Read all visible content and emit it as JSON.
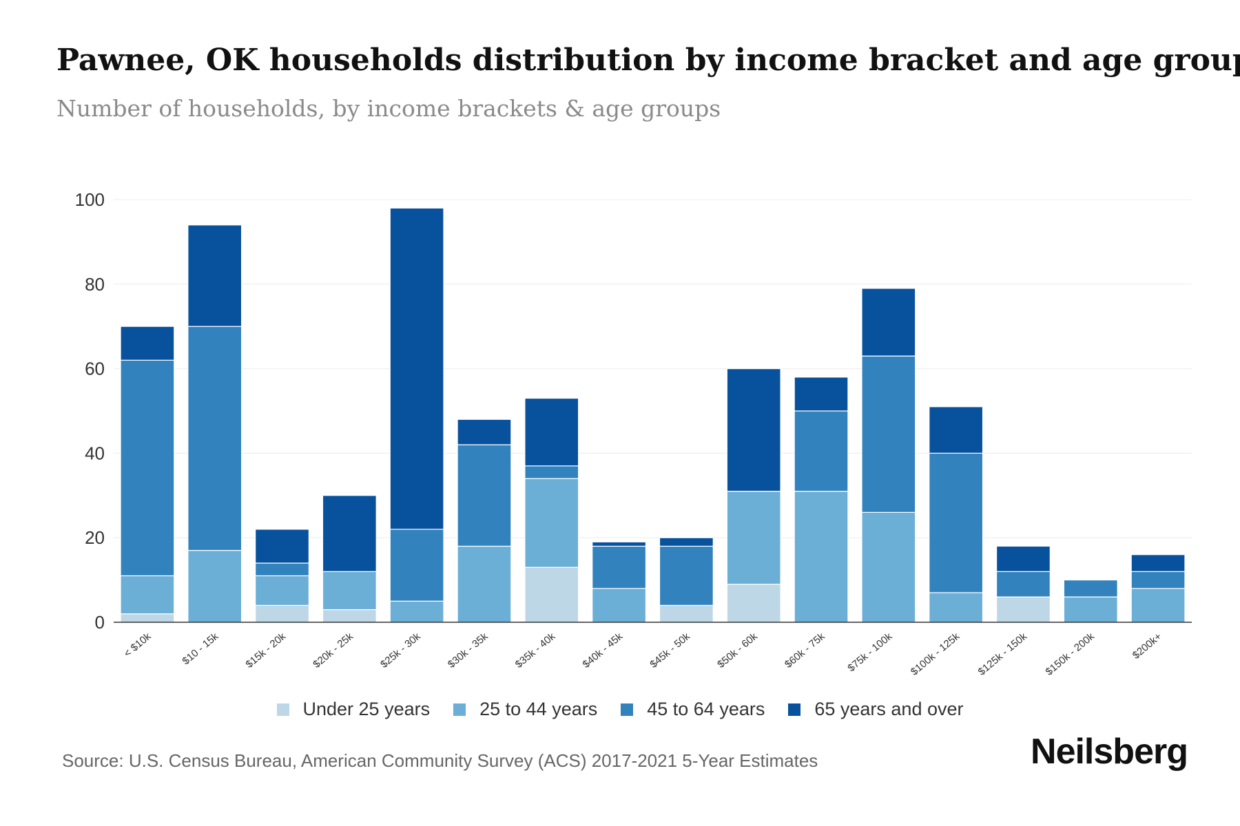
{
  "header": {
    "title": "Pawnee, OK households distribution by income bracket and age group",
    "subtitle": "Number of households, by income brackets & age groups"
  },
  "footer": {
    "source": "Source: U.S. Census Bureau, American Community Survey (ACS) 2017-2021 5-Year Estimates",
    "brand": "Neilsberg"
  },
  "chart_data": {
    "type": "bar",
    "stacked": true,
    "title": "Pawnee, OK households distribution by income bracket and age group",
    "subtitle": "Number of households, by income brackets & age groups",
    "xlabel": "",
    "ylabel": "",
    "ylim": [
      0,
      100
    ],
    "yticks": [
      0,
      20,
      40,
      60,
      80,
      100
    ],
    "grid": true,
    "legend_position": "bottom-center",
    "categories": [
      "< $10k",
      "$10 - 15k",
      "$15k - 20k",
      "$20k - 25k",
      "$25k - 30k",
      "$30k - 35k",
      "$35k - 40k",
      "$40k - 45k",
      "$45k - 50k",
      "$50k - 60k",
      "$60k - 75k",
      "$75k - 100k",
      "$100k - 125k",
      "$125k - 150k",
      "$150k - 200k",
      "$200k+"
    ],
    "series": [
      {
        "name": "Under 25 years",
        "color": "#bdd7e7",
        "values": [
          2,
          0,
          4,
          3,
          0,
          0,
          13,
          0,
          4,
          9,
          0,
          0,
          0,
          6,
          0,
          0
        ]
      },
      {
        "name": "25 to 44 years",
        "color": "#6baed6",
        "values": [
          9,
          17,
          7,
          9,
          5,
          18,
          21,
          8,
          0,
          22,
          31,
          26,
          7,
          0,
          6,
          8
        ]
      },
      {
        "name": "45 to 64 years",
        "color": "#3182bd",
        "values": [
          51,
          53,
          3,
          0,
          17,
          24,
          3,
          10,
          14,
          0,
          19,
          37,
          33,
          6,
          4,
          4
        ]
      },
      {
        "name": "65 years and over",
        "color": "#08519c",
        "values": [
          8,
          24,
          8,
          18,
          76,
          6,
          16,
          1,
          2,
          29,
          8,
          16,
          11,
          6,
          0,
          4
        ]
      }
    ]
  }
}
